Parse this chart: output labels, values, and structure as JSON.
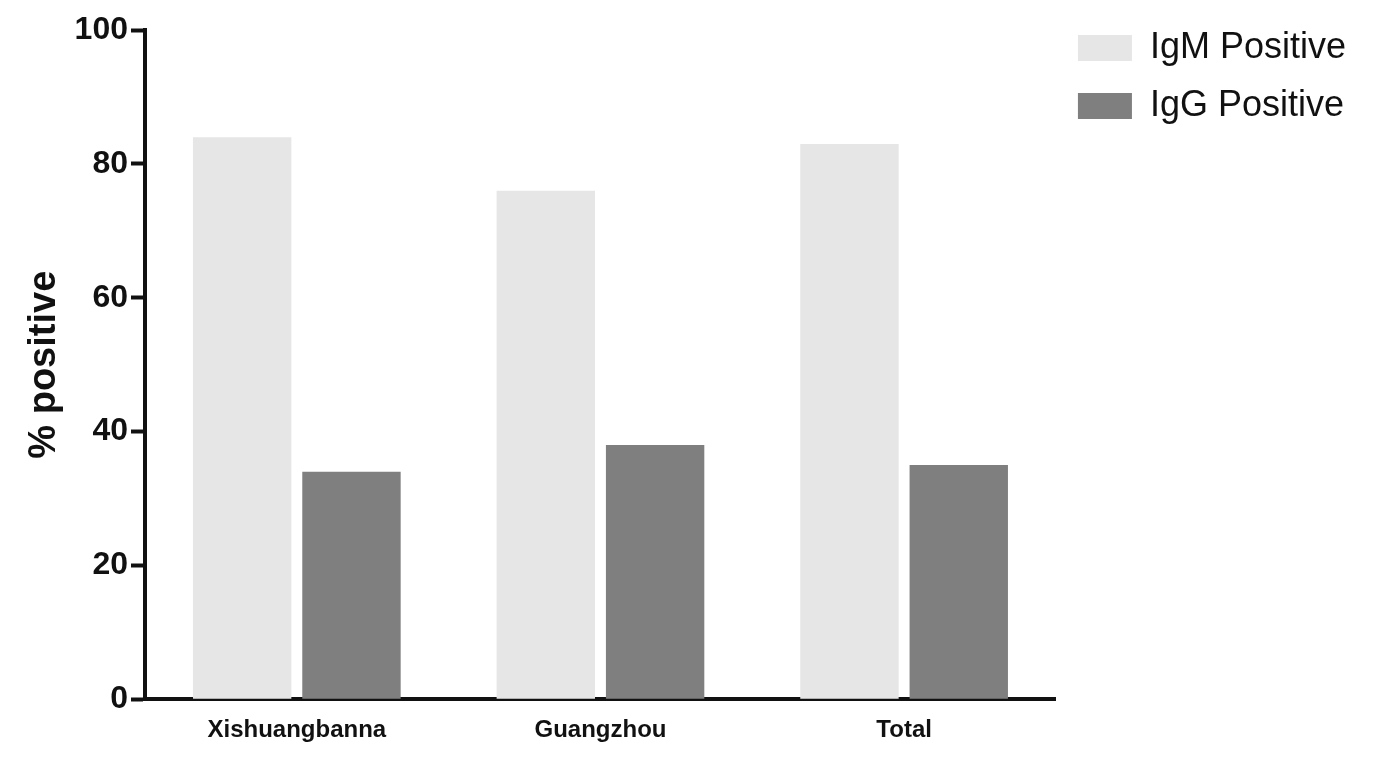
{
  "chart_data": {
    "type": "bar",
    "ylabel": "% positive",
    "categories": [
      "Xishuangbanna",
      "Guangzhou",
      "Total"
    ],
    "series": [
      {
        "name": "IgM Positive",
        "color": "#e6e6e6",
        "values": [
          84,
          76,
          83
        ]
      },
      {
        "name": "IgG Positive",
        "color": "#7f7f7f",
        "values": [
          34,
          38,
          35
        ]
      }
    ],
    "ylim": [
      0,
      100
    ],
    "yticks": [
      0,
      20,
      40,
      60,
      80,
      100
    ],
    "grid": false,
    "legend": "top right"
  }
}
